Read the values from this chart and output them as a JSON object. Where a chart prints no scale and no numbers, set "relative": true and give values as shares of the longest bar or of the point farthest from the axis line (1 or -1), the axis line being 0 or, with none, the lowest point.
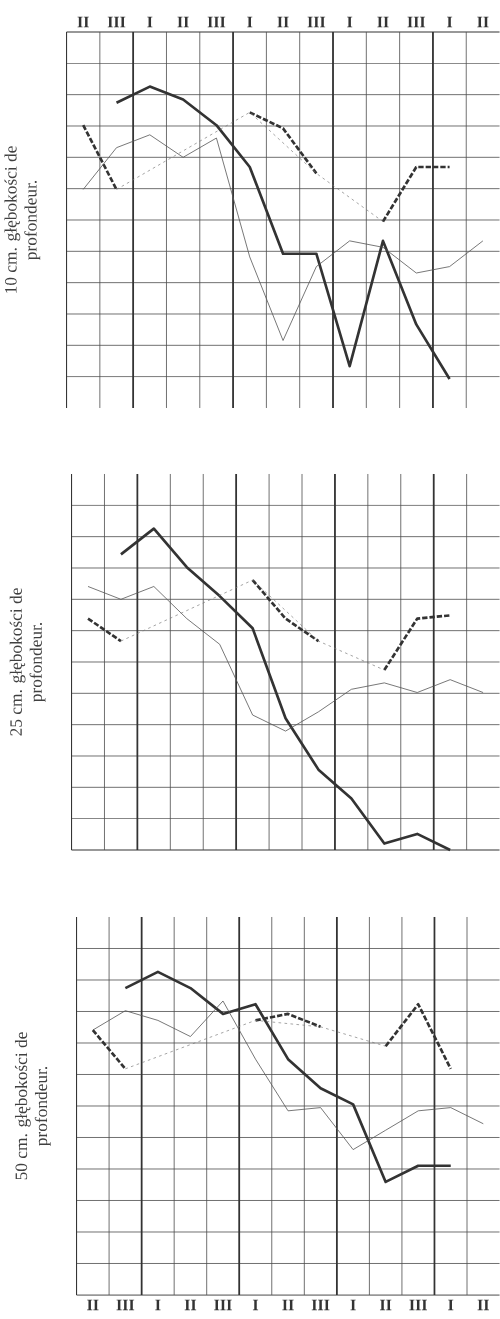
{
  "chart_data": [
    {
      "type": "line",
      "relative": true,
      "ylabel": "10 cm. głębokości de profondeur.",
      "tick_labels": "x",
      "grid": true,
      "categories": [
        "II",
        "III",
        "I",
        "II",
        "III",
        "I",
        "II",
        "III",
        "I",
        "II",
        "III",
        "I",
        "II"
      ],
      "series": [
        {
          "color": "#333333",
          "line_style": "solid",
          "values": [
            null,
            0.95,
            1,
            0.96,
            0.88,
            0.75,
            0.48,
            0.48,
            0.13,
            0.52,
            0.26,
            0.09,
            null
          ]
        },
        {
          "color": "#555555",
          "line_style": "solid",
          "values": [
            0.68,
            0.81,
            0.85,
            0.78,
            0.84,
            0.47,
            0.21,
            0.44,
            0.52,
            0.5,
            0.42,
            0.44,
            0.52
          ]
        },
        {
          "color": "#333333",
          "line_style": "dashed",
          "values": [
            0.88,
            0.68,
            null,
            null,
            null,
            0.92,
            0.87,
            0.73,
            null,
            0.58,
            0.75,
            0.75,
            null
          ]
        },
        {
          "color": "#777777",
          "line_style": "dashed",
          "values": [
            null,
            0.68,
            null,
            null,
            null,
            0.92,
            null,
            0.73,
            null,
            0.58,
            null,
            null,
            null
          ]
        }
      ]
    },
    {
      "type": "line",
      "relative": true,
      "ylabel": "25 cm. głębokości de profondeur.",
      "grid": true,
      "categories": [
        null,
        null,
        null,
        null,
        null,
        null,
        null,
        null,
        null,
        null,
        null,
        null,
        null
      ],
      "series": [
        {
          "color": "#333333",
          "line_style": "solid",
          "values": [
            null,
            0.92,
            1,
            0.88,
            0.79,
            0.69,
            0.41,
            0.25,
            0.16,
            0.02,
            0.05,
            0,
            null
          ]
        },
        {
          "color": "#555555",
          "line_style": "solid",
          "values": [
            0.82,
            0.78,
            0.82,
            0.72,
            0.64,
            0.42,
            0.37,
            0.43,
            0.5,
            0.52,
            0.49,
            0.53,
            0.49
          ]
        },
        {
          "color": "#333333",
          "line_style": "dashed",
          "values": [
            0.72,
            0.65,
            null,
            null,
            null,
            0.84,
            0.72,
            0.65,
            null,
            0.56,
            0.72,
            0.73,
            null
          ]
        },
        {
          "color": "#777777",
          "line_style": "dashed",
          "values": [
            null,
            0.65,
            null,
            null,
            null,
            0.84,
            null,
            0.65,
            null,
            0.56,
            null,
            null,
            null
          ]
        }
      ]
    },
    {
      "type": "line",
      "relative": true,
      "ylabel": "50 cm. głębokości de profondeur.",
      "tick_labels": "x",
      "grid": true,
      "categories": [
        "II",
        "III",
        "I",
        "II",
        "III",
        "I",
        "II",
        "III",
        "I",
        "II",
        "III",
        "I",
        "II"
      ],
      "series": [
        {
          "color": "#333333",
          "line_style": "solid",
          "values": [
            null,
            0.95,
            1,
            0.95,
            0.87,
            0.9,
            0.73,
            0.64,
            0.59,
            0.35,
            0.4,
            0.4,
            null
          ]
        },
        {
          "color": "#555555",
          "line_style": "solid",
          "values": [
            0.82,
            0.88,
            0.85,
            0.8,
            0.91,
            0.73,
            0.57,
            0.58,
            0.45,
            0.51,
            0.57,
            0.58,
            0.53
          ]
        },
        {
          "color": "#333333",
          "line_style": "dashed",
          "values": [
            0.82,
            0.7,
            null,
            null,
            null,
            0.85,
            0.87,
            0.83,
            null,
            0.77,
            0.9,
            0.7,
            null
          ]
        },
        {
          "color": "#777777",
          "line_style": "dashed",
          "values": [
            null,
            0.7,
            null,
            null,
            null,
            0.85,
            null,
            0.83,
            null,
            0.77,
            null,
            null,
            null
          ]
        }
      ]
    }
  ]
}
